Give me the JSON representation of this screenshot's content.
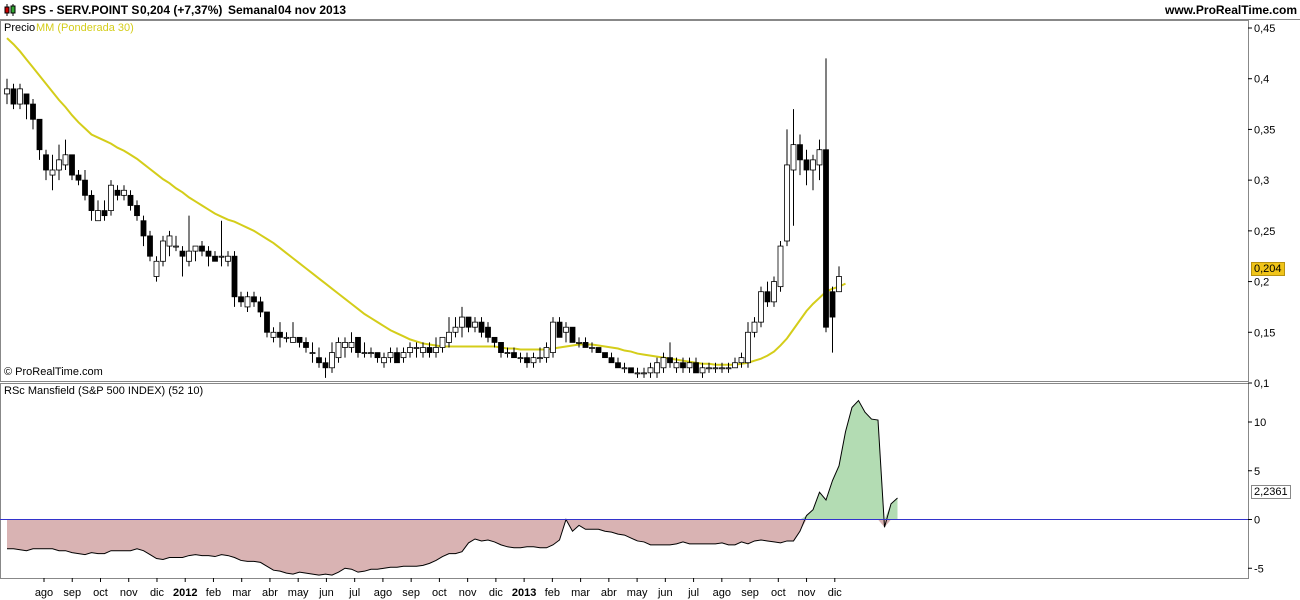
{
  "header": {
    "ticker": "SPS - SERV.POINT S",
    "price_change": "0,204 (+7,37%)",
    "period": "Semanal",
    "date": "04 nov 2013",
    "site": "www.ProRealTime.com"
  },
  "price_panel": {
    "label": "Precio",
    "ma_label": "MM (Ponderada 30)",
    "copyright": "© ProRealTime.com",
    "current_badge": "0,204"
  },
  "rs_panel": {
    "label": "RSc Mansfield (S&P 500 INDEX) (52 10)",
    "current_badge": "2,2361"
  },
  "colors": {
    "ma_line": "#d4cd1a",
    "badge_price": "#f0c419",
    "rs_positive": "#b3dcb3",
    "rs_negative": "#d9b3b3",
    "zero_line": "#3333cc",
    "bull_candle": "#ffffff",
    "bear_candle": "#000000"
  },
  "x_axis": {
    "labels": [
      "ago",
      "sep",
      "oct",
      "nov",
      "dic",
      "2012",
      "feb",
      "mar",
      "abr",
      "may",
      "jun",
      "jul",
      "ago",
      "sep",
      "oct",
      "nov",
      "dic",
      "2013",
      "feb",
      "mar",
      "abr",
      "may",
      "jun",
      "jul",
      "ago",
      "sep",
      "oct",
      "nov",
      "dic"
    ],
    "bold": [
      "2012",
      "2013"
    ]
  },
  "chart_data": [
    {
      "type": "candlestick",
      "title": "SPS - SERV.POINT S",
      "ylim": [
        0.1,
        0.45
      ],
      "yticks": [
        "0,45",
        "0,4",
        "0,35",
        "0,3",
        "0,25",
        "0,2",
        "0,15",
        "0,1"
      ],
      "yticks_values": [
        0.45,
        0.4,
        0.35,
        0.3,
        0.25,
        0.2,
        0.15,
        0.1
      ],
      "candles": [
        [
          0.385,
          0.4,
          0.375,
          0.39
        ],
        [
          0.39,
          0.395,
          0.37,
          0.375
        ],
        [
          0.375,
          0.395,
          0.37,
          0.39
        ],
        [
          0.385,
          0.385,
          0.36,
          0.375
        ],
        [
          0.375,
          0.38,
          0.35,
          0.36
        ],
        [
          0.36,
          0.36,
          0.32,
          0.33
        ],
        [
          0.325,
          0.33,
          0.3,
          0.31
        ],
        [
          0.305,
          0.325,
          0.29,
          0.31
        ],
        [
          0.31,
          0.335,
          0.3,
          0.32
        ],
        [
          0.315,
          0.34,
          0.31,
          0.325
        ],
        [
          0.325,
          0.325,
          0.3,
          0.305
        ],
        [
          0.305,
          0.31,
          0.295,
          0.3
        ],
        [
          0.3,
          0.31,
          0.28,
          0.285
        ],
        [
          0.285,
          0.29,
          0.26,
          0.27
        ],
        [
          0.26,
          0.28,
          0.26,
          0.27
        ],
        [
          0.27,
          0.28,
          0.26,
          0.265
        ],
        [
          0.27,
          0.3,
          0.265,
          0.295
        ],
        [
          0.29,
          0.295,
          0.28,
          0.285
        ],
        [
          0.285,
          0.295,
          0.28,
          0.29
        ],
        [
          0.285,
          0.29,
          0.27,
          0.275
        ],
        [
          0.275,
          0.28,
          0.26,
          0.265
        ],
        [
          0.26,
          0.265,
          0.235,
          0.245
        ],
        [
          0.245,
          0.25,
          0.22,
          0.225
        ],
        [
          0.205,
          0.225,
          0.2,
          0.22
        ],
        [
          0.22,
          0.245,
          0.215,
          0.24
        ],
        [
          0.235,
          0.25,
          0.225,
          0.245
        ],
        [
          0.235,
          0.245,
          0.23,
          0.235
        ],
        [
          0.23,
          0.235,
          0.205,
          0.225
        ],
        [
          0.22,
          0.265,
          0.215,
          0.23
        ],
        [
          0.23,
          0.235,
          0.22,
          0.235
        ],
        [
          0.235,
          0.24,
          0.225,
          0.23
        ],
        [
          0.23,
          0.235,
          0.215,
          0.225
        ],
        [
          0.225,
          0.23,
          0.22,
          0.22
        ],
        [
          0.225,
          0.26,
          0.215,
          0.225
        ],
        [
          0.22,
          0.23,
          0.215,
          0.225
        ],
        [
          0.225,
          0.23,
          0.175,
          0.185
        ],
        [
          0.185,
          0.19,
          0.175,
          0.18
        ],
        [
          0.175,
          0.19,
          0.17,
          0.185
        ],
        [
          0.185,
          0.19,
          0.175,
          0.18
        ],
        [
          0.18,
          0.185,
          0.165,
          0.17
        ],
        [
          0.17,
          0.17,
          0.145,
          0.15
        ],
        [
          0.145,
          0.155,
          0.14,
          0.15
        ],
        [
          0.15,
          0.16,
          0.135,
          0.145
        ],
        [
          0.145,
          0.15,
          0.14,
          0.145
        ],
        [
          0.14,
          0.16,
          0.14,
          0.145
        ],
        [
          0.145,
          0.145,
          0.135,
          0.14
        ],
        [
          0.14,
          0.145,
          0.13,
          0.135
        ],
        [
          0.13,
          0.14,
          0.12,
          0.13
        ],
        [
          0.125,
          0.135,
          0.115,
          0.12
        ],
        [
          0.12,
          0.125,
          0.105,
          0.115
        ],
        [
          0.115,
          0.14,
          0.11,
          0.13
        ],
        [
          0.125,
          0.145,
          0.12,
          0.14
        ],
        [
          0.135,
          0.145,
          0.125,
          0.14
        ],
        [
          0.135,
          0.15,
          0.13,
          0.14
        ],
        [
          0.145,
          0.145,
          0.125,
          0.13
        ],
        [
          0.13,
          0.14,
          0.125,
          0.13
        ],
        [
          0.13,
          0.135,
          0.125,
          0.13
        ],
        [
          0.13,
          0.13,
          0.12,
          0.125
        ],
        [
          0.12,
          0.13,
          0.115,
          0.125
        ],
        [
          0.125,
          0.135,
          0.12,
          0.13
        ],
        [
          0.13,
          0.135,
          0.12,
          0.12
        ],
        [
          0.125,
          0.135,
          0.12,
          0.13
        ],
        [
          0.13,
          0.14,
          0.125,
          0.135
        ],
        [
          0.135,
          0.14,
          0.125,
          0.135
        ],
        [
          0.13,
          0.14,
          0.125,
          0.135
        ],
        [
          0.135,
          0.14,
          0.125,
          0.13
        ],
        [
          0.13,
          0.145,
          0.125,
          0.135
        ],
        [
          0.135,
          0.145,
          0.13,
          0.145
        ],
        [
          0.14,
          0.165,
          0.135,
          0.15
        ],
        [
          0.15,
          0.165,
          0.145,
          0.155
        ],
        [
          0.155,
          0.175,
          0.145,
          0.165
        ],
        [
          0.165,
          0.165,
          0.15,
          0.155
        ],
        [
          0.155,
          0.165,
          0.15,
          0.16
        ],
        [
          0.16,
          0.165,
          0.145,
          0.15
        ],
        [
          0.155,
          0.16,
          0.14,
          0.145
        ],
        [
          0.145,
          0.145,
          0.135,
          0.14
        ],
        [
          0.14,
          0.14,
          0.125,
          0.13
        ],
        [
          0.13,
          0.135,
          0.125,
          0.13
        ],
        [
          0.13,
          0.135,
          0.125,
          0.125
        ],
        [
          0.125,
          0.13,
          0.12,
          0.125
        ],
        [
          0.125,
          0.13,
          0.115,
          0.12
        ],
        [
          0.12,
          0.13,
          0.115,
          0.125
        ],
        [
          0.125,
          0.135,
          0.12,
          0.125
        ],
        [
          0.125,
          0.14,
          0.12,
          0.135
        ],
        [
          0.13,
          0.165,
          0.125,
          0.16
        ],
        [
          0.16,
          0.165,
          0.145,
          0.145
        ],
        [
          0.15,
          0.16,
          0.14,
          0.155
        ],
        [
          0.155,
          0.155,
          0.14,
          0.14
        ],
        [
          0.14,
          0.145,
          0.135,
          0.14
        ],
        [
          0.14,
          0.145,
          0.135,
          0.135
        ],
        [
          0.135,
          0.14,
          0.13,
          0.135
        ],
        [
          0.135,
          0.135,
          0.13,
          0.13
        ],
        [
          0.13,
          0.13,
          0.125,
          0.125
        ],
        [
          0.125,
          0.13,
          0.12,
          0.12
        ],
        [
          0.12,
          0.125,
          0.115,
          0.115
        ],
        [
          0.115,
          0.12,
          0.11,
          0.115
        ],
        [
          0.115,
          0.115,
          0.11,
          0.11
        ],
        [
          0.11,
          0.115,
          0.105,
          0.11
        ],
        [
          0.11,
          0.115,
          0.105,
          0.11
        ],
        [
          0.11,
          0.12,
          0.105,
          0.115
        ],
        [
          0.11,
          0.125,
          0.105,
          0.12
        ],
        [
          0.115,
          0.13,
          0.11,
          0.125
        ],
        [
          0.125,
          0.14,
          0.115,
          0.12
        ],
        [
          0.115,
          0.125,
          0.11,
          0.12
        ],
        [
          0.12,
          0.125,
          0.11,
          0.115
        ],
        [
          0.115,
          0.125,
          0.11,
          0.12
        ],
        [
          0.12,
          0.125,
          0.11,
          0.11
        ],
        [
          0.11,
          0.12,
          0.105,
          0.115
        ],
        [
          0.115,
          0.12,
          0.11,
          0.115
        ],
        [
          0.115,
          0.12,
          0.11,
          0.115
        ],
        [
          0.115,
          0.12,
          0.11,
          0.115
        ],
        [
          0.115,
          0.12,
          0.11,
          0.115
        ],
        [
          0.115,
          0.125,
          0.115,
          0.12
        ],
        [
          0.12,
          0.13,
          0.115,
          0.125
        ],
        [
          0.12,
          0.16,
          0.115,
          0.15
        ],
        [
          0.15,
          0.165,
          0.145,
          0.16
        ],
        [
          0.16,
          0.195,
          0.155,
          0.19
        ],
        [
          0.19,
          0.2,
          0.175,
          0.18
        ],
        [
          0.18,
          0.205,
          0.175,
          0.2
        ],
        [
          0.195,
          0.24,
          0.19,
          0.235
        ],
        [
          0.24,
          0.35,
          0.235,
          0.315
        ],
        [
          0.31,
          0.37,
          0.255,
          0.335
        ],
        [
          0.335,
          0.345,
          0.305,
          0.32
        ],
        [
          0.32,
          0.33,
          0.295,
          0.31
        ],
        [
          0.31,
          0.325,
          0.29,
          0.32
        ],
        [
          0.315,
          0.34,
          0.3,
          0.33
        ],
        [
          0.33,
          0.42,
          0.15,
          0.155
        ],
        [
          0.19,
          0.195,
          0.13,
          0.165
        ],
        [
          0.19,
          0.215,
          0.19,
          0.205
        ]
      ],
      "ma": [
        0.44,
        0.434,
        0.427,
        0.419,
        0.411,
        0.403,
        0.395,
        0.387,
        0.379,
        0.372,
        0.364,
        0.357,
        0.351,
        0.345,
        0.342,
        0.339,
        0.336,
        0.332,
        0.329,
        0.325,
        0.321,
        0.316,
        0.311,
        0.306,
        0.301,
        0.297,
        0.292,
        0.288,
        0.283,
        0.279,
        0.275,
        0.271,
        0.267,
        0.264,
        0.261,
        0.259,
        0.256,
        0.253,
        0.25,
        0.246,
        0.242,
        0.238,
        0.233,
        0.228,
        0.223,
        0.218,
        0.213,
        0.208,
        0.203,
        0.198,
        0.193,
        0.188,
        0.183,
        0.178,
        0.173,
        0.168,
        0.164,
        0.16,
        0.156,
        0.152,
        0.149,
        0.146,
        0.143,
        0.141,
        0.139,
        0.138,
        0.137,
        0.136,
        0.136,
        0.136,
        0.136,
        0.136,
        0.136,
        0.136,
        0.136,
        0.136,
        0.135,
        0.134,
        0.134,
        0.133,
        0.133,
        0.133,
        0.133,
        0.133,
        0.134,
        0.135,
        0.136,
        0.137,
        0.138,
        0.138,
        0.138,
        0.137,
        0.136,
        0.135,
        0.134,
        0.132,
        0.131,
        0.129,
        0.128,
        0.127,
        0.126,
        0.125,
        0.124,
        0.123,
        0.122,
        0.121,
        0.12,
        0.119,
        0.119,
        0.118,
        0.118,
        0.118,
        0.118,
        0.119,
        0.12,
        0.122,
        0.124,
        0.127,
        0.131,
        0.137,
        0.144,
        0.153,
        0.162,
        0.171,
        0.178,
        0.184,
        0.19,
        0.193,
        0.195,
        0.198
      ]
    },
    {
      "type": "area",
      "title": "RSc Mansfield (S&P 500 INDEX) (52 10)",
      "ylim": [
        -6,
        14
      ],
      "yticks": [
        "10",
        "5",
        "0",
        "-5"
      ],
      "yticks_values": [
        10,
        5,
        0,
        -5
      ],
      "values": [
        -3.0,
        -3.0,
        -3.1,
        -3.2,
        -3.0,
        -3.0,
        -3.0,
        -3.0,
        -3.2,
        -3.2,
        -3.4,
        -3.5,
        -3.6,
        -3.4,
        -3.5,
        -3.5,
        -3.2,
        -3.2,
        -3.2,
        -3.2,
        -3.0,
        -3.2,
        -3.6,
        -4.0,
        -4.1,
        -3.9,
        -3.9,
        -3.9,
        -3.7,
        -3.6,
        -3.7,
        -3.7,
        -3.8,
        -3.6,
        -3.7,
        -3.9,
        -4.2,
        -4.3,
        -4.3,
        -4.4,
        -4.8,
        -5.2,
        -5.3,
        -5.5,
        -5.6,
        -5.4,
        -5.5,
        -5.6,
        -5.7,
        -5.6,
        -5.7,
        -5.4,
        -5.0,
        -5.1,
        -5.4,
        -5.3,
        -5.1,
        -5.1,
        -5.0,
        -4.9,
        -4.9,
        -4.8,
        -4.8,
        -4.8,
        -4.7,
        -4.5,
        -4.2,
        -3.8,
        -3.5,
        -3.5,
        -3.3,
        -2.4,
        -2.0,
        -2.2,
        -2.1,
        -2.3,
        -2.6,
        -2.8,
        -2.9,
        -2.9,
        -2.8,
        -2.8,
        -2.9,
        -2.9,
        -2.6,
        -2.1,
        0.0,
        -1.2,
        -0.6,
        -1.0,
        -1.0,
        -1.0,
        -1.2,
        -1.3,
        -1.5,
        -1.6,
        -1.9,
        -2.2,
        -2.3,
        -2.6,
        -2.6,
        -2.6,
        -2.6,
        -2.5,
        -2.3,
        -2.5,
        -2.5,
        -2.5,
        -2.5,
        -2.5,
        -2.4,
        -2.6,
        -2.6,
        -2.3,
        -2.5,
        -2.2,
        -2.1,
        -2.2,
        -2.3,
        -2.4,
        -2.2,
        -2.2,
        -1.2,
        0.4,
        1.0,
        2.8,
        2.0,
        4.0,
        5.5,
        9.0,
        11.5,
        12.2,
        11.0,
        10.3,
        10.2,
        -0.8,
        1.6,
        2.2
      ]
    }
  ]
}
